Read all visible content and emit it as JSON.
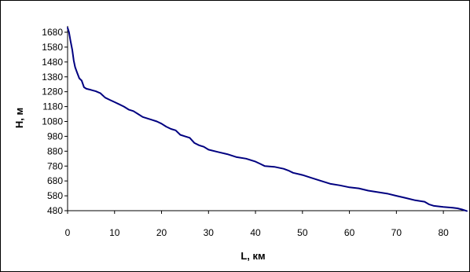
{
  "chart_data": {
    "type": "line",
    "title": "",
    "xlabel": "L, км",
    "ylabel": "H, м",
    "xlim": [
      0,
      85
    ],
    "ylim": [
      480,
      1680
    ],
    "x_ticks": [
      "0",
      "10",
      "20",
      "30",
      "40",
      "50",
      "60",
      "70",
      "80"
    ],
    "y_ticks": [
      "1680",
      "1580",
      "1480",
      "1380",
      "1280",
      "1180",
      "1080",
      "980",
      "880",
      "780",
      "680",
      "580",
      "480"
    ],
    "grid": false,
    "legend": "none",
    "line_color": "#000080",
    "series": [
      {
        "x": [
          0,
          0.3,
          0.6,
          1.0,
          1.3,
          1.6,
          2.0,
          2.5,
          3.0,
          3.5,
          4.0,
          5.0,
          6.0,
          7.0,
          8.0,
          9.0,
          10.0,
          11.0,
          12.0,
          13.0,
          14.0,
          15.0,
          16.0,
          17.0,
          18.0,
          19.0,
          20.0,
          21.0,
          22.0,
          23.0,
          24.0,
          25.0,
          26.0,
          27.0,
          28.0,
          29.0,
          30.0,
          32.0,
          34.0,
          36.0,
          38.0,
          40.0,
          41.0,
          42.0,
          44.0,
          46.0,
          47.0,
          48.0,
          50.0,
          52.0,
          54.0,
          56.0,
          58.0,
          60.0,
          62.0,
          64.0,
          66.0,
          68.0,
          70.0,
          72.0,
          74.0,
          76.0,
          77.0,
          78.0,
          80.0,
          82.0,
          83.0,
          84.0,
          85.0
        ],
        "values": [
          1710,
          1680,
          1625,
          1560,
          1490,
          1445,
          1410,
          1370,
          1355,
          1310,
          1300,
          1292,
          1283,
          1270,
          1240,
          1225,
          1210,
          1195,
          1180,
          1160,
          1150,
          1130,
          1110,
          1100,
          1090,
          1080,
          1065,
          1045,
          1030,
          1020,
          990,
          980,
          970,
          935,
          920,
          910,
          890,
          875,
          860,
          840,
          830,
          810,
          795,
          780,
          775,
          762,
          750,
          735,
          720,
          700,
          680,
          660,
          650,
          637,
          630,
          615,
          605,
          595,
          580,
          565,
          550,
          540,
          522,
          512,
          505,
          500,
          496,
          488,
          478
        ]
      }
    ]
  }
}
